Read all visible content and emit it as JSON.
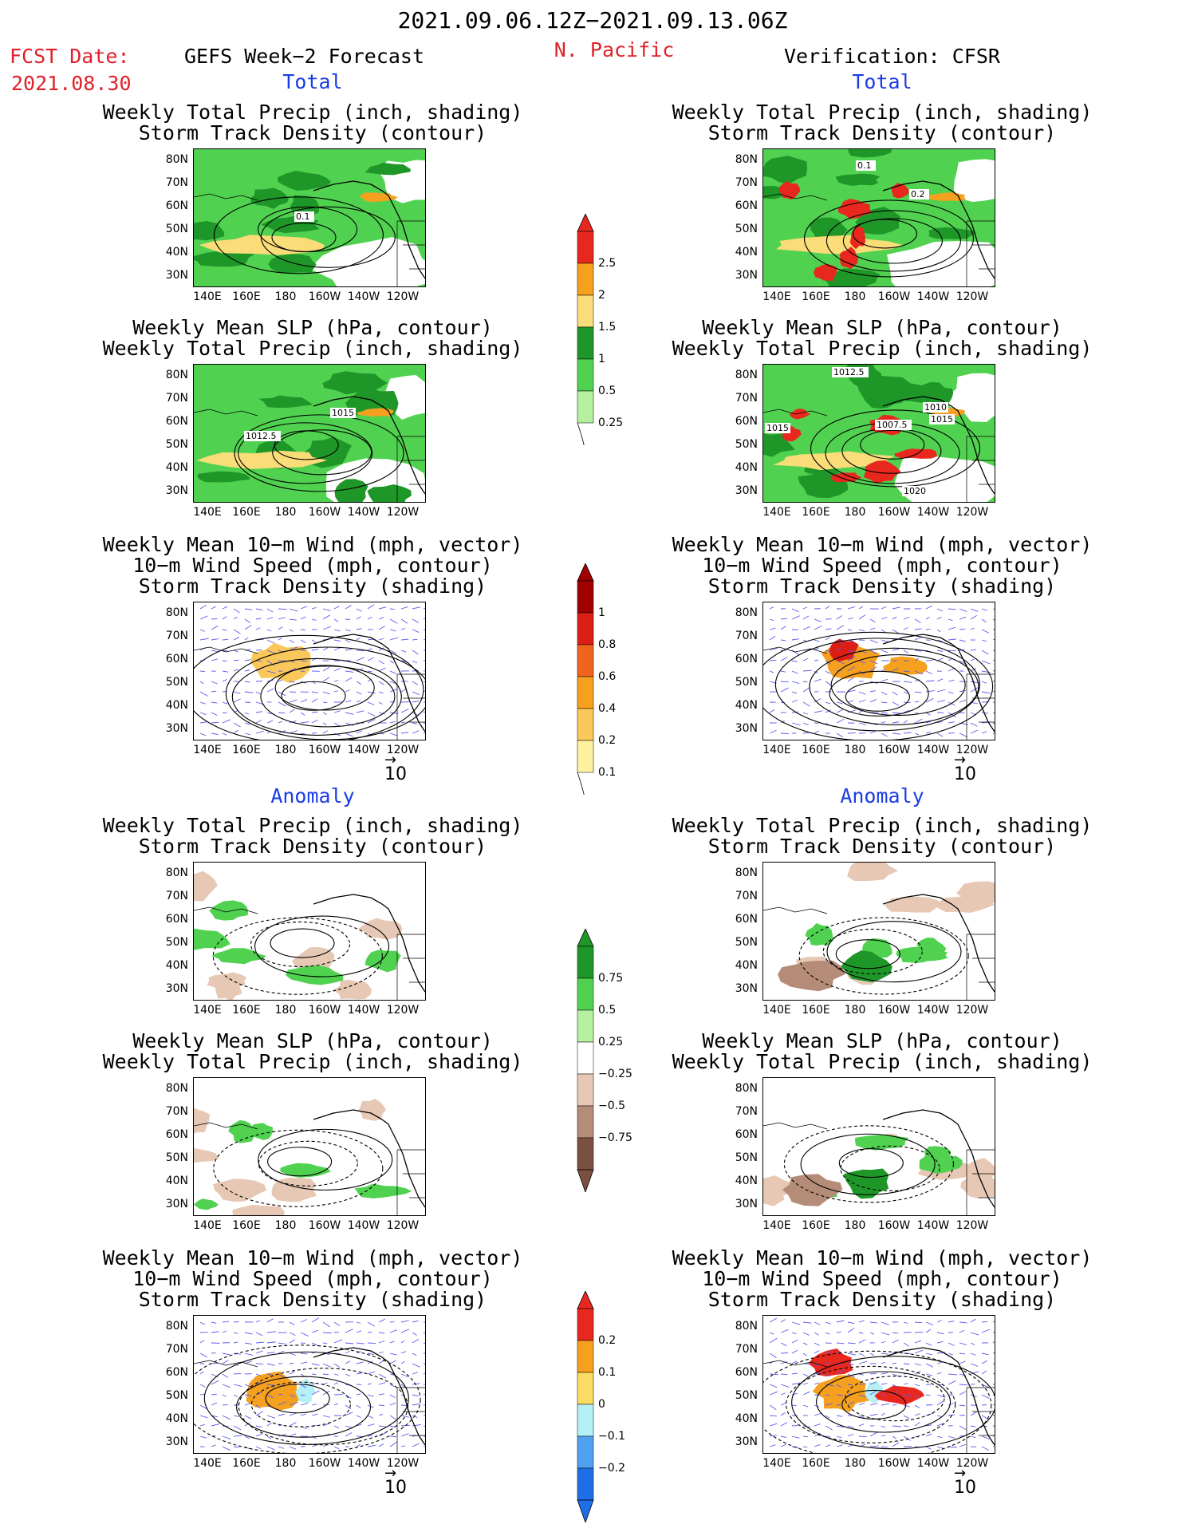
{
  "header": {
    "date_range": "2021.09.06.12Z−2021.09.13.06Z",
    "fcst_label": "FCST Date:",
    "fcst_date": "2021.08.30",
    "left_title": "GEFS Week−2 Forecast",
    "region": "N. Pacific",
    "right_title": "Verification: CFSR"
  },
  "sections": {
    "total": "Total",
    "anomaly": "Anomaly"
  },
  "titles": {
    "precip_storm": [
      "Weekly Total Precip (inch, shading)",
      "Storm Track Density (contour)"
    ],
    "slp_precip": [
      "Weekly Mean SLP (hPa, contour)",
      "Weekly Total Precip (inch, shading)"
    ],
    "wind": [
      "Weekly Mean 10−m Wind (mph, vector)",
      "10−m Wind Speed (mph, contour)",
      "Storm Track Density (shading)"
    ]
  },
  "axes": {
    "lat_ticks": [
      "80N",
      "70N",
      "60N",
      "50N",
      "40N",
      "30N"
    ],
    "lon_ticks": [
      "140E",
      "160E",
      "180",
      "160W",
      "140W",
      "120W"
    ]
  },
  "vector_ref": "10",
  "colorbars": {
    "precip_total": {
      "labels": [
        "2.5",
        "2",
        "1.5",
        "1",
        "0.5",
        "0.25"
      ],
      "colors": [
        "#e8281e",
        "#f5a01e",
        "#fadc78",
        "#1e9628",
        "#50d250",
        "#b4f0a0"
      ]
    },
    "storm_total": {
      "labels": [
        "1",
        "0.8",
        "0.6",
        "0.4",
        "0.2",
        "0.1"
      ],
      "colors": [
        "#a00000",
        "#dc1e14",
        "#f0641e",
        "#f5a01e",
        "#fac85a",
        "#fff0a0"
      ]
    },
    "precip_anom": {
      "labels": [
        "0.75",
        "0.5",
        "0.25",
        "−0.25",
        "−0.5",
        "−0.75"
      ],
      "colors": [
        "#1e9628",
        "#50d250",
        "#b4f0a0",
        "#ffffff",
        "#e6c8b4",
        "#b48c78",
        "#7a5040"
      ]
    },
    "storm_anom": {
      "labels": [
        "0.2",
        "0.1",
        "0",
        "−0.1",
        "−0.2"
      ],
      "colors": [
        "#e8281e",
        "#f5a01e",
        "#fadc64",
        "#b4f0f5",
        "#50a0f0",
        "#1e6ee6"
      ]
    },
    "contour_labels": {
      "p1_storm": "0.1",
      "p2_storm_a": "0.1",
      "p2_storm_b": "0.2",
      "p3_slp": "1015",
      "p3_slp_b": "1012.5",
      "p4_slp_a": "1012.5",
      "p4_slp_b": "1010",
      "p4_slp_c": "1015",
      "p4_slp_d": "1007.5",
      "p4_slp_e": "1015",
      "p4_slp_f": "1020"
    }
  }
}
